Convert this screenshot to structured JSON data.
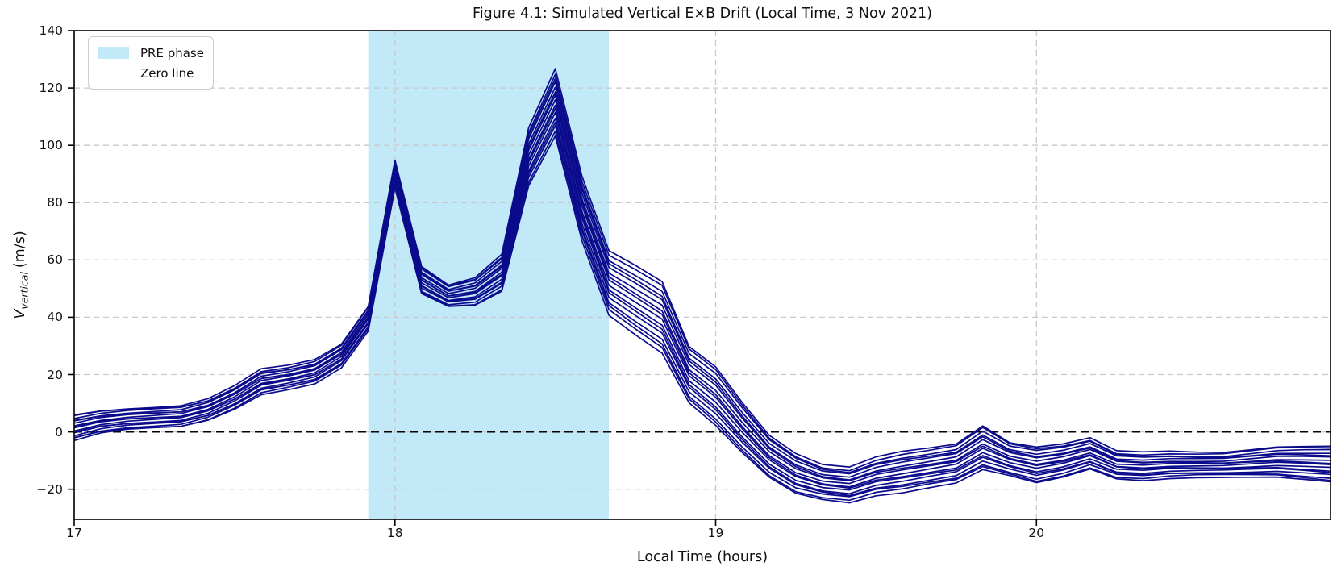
{
  "figure": {
    "title": "Figure 4.1: Simulated Vertical E×B Drift (Local Time, 3 Nov 2021)",
    "xlabel": "Local Time (hours)",
    "ylabel": {
      "variable": "V",
      "subscript": "vertical",
      "unit": "(m/s)"
    }
  },
  "legend": {
    "items": [
      {
        "label": "PRE phase",
        "marker": "patch",
        "color": "#c2e9f8"
      },
      {
        "label": "Zero line",
        "marker": "dashed-line",
        "color": "#000000"
      }
    ]
  },
  "chart_data": {
    "type": "line",
    "title": "Figure 4.1: Simulated Vertical E×B Drift (Local Time, 3 Nov 2021)",
    "xlabel": "Local Time (hours)",
    "ylabel": "V_vertical (m/s)",
    "xlim": [
      17.0,
      20.917
    ],
    "ylim": [
      -30.5,
      140
    ],
    "xticks": [
      17,
      18,
      19,
      20
    ],
    "yticks": [
      -20,
      0,
      20,
      40,
      60,
      80,
      100,
      120,
      140
    ],
    "grid": true,
    "grid_color": "#c9c9c9",
    "legend_position": "upper left",
    "pre_phase_span": {
      "start": 17.917,
      "end": 18.667,
      "color": "#c2e9f8"
    },
    "zero_line_y": 0,
    "ensemble": {
      "n_members": 16,
      "line_color": "#0b0b8c",
      "line_width": 1.7,
      "x_hours": [
        17.0,
        17.083,
        17.167,
        17.25,
        17.333,
        17.417,
        17.5,
        17.583,
        17.667,
        17.75,
        17.833,
        17.917,
        18.0,
        18.083,
        18.167,
        18.25,
        18.333,
        18.417,
        18.5,
        18.583,
        18.667,
        18.75,
        18.833,
        18.917,
        19.0,
        19.083,
        19.167,
        19.25,
        19.333,
        19.417,
        19.5,
        19.583,
        19.667,
        19.75,
        19.833,
        19.917,
        20.0,
        20.083,
        20.167,
        20.25,
        20.333,
        20.417,
        20.5,
        20.583,
        20.667,
        20.75,
        20.833,
        20.917
      ],
      "center": [
        1.5,
        3.5,
        4.5,
        5.0,
        5.5,
        7.8,
        12.0,
        17.5,
        19.0,
        21.0,
        26.5,
        39.5,
        90.0,
        53.0,
        47.5,
        49.0,
        55.5,
        96.0,
        115.0,
        78.0,
        52.0,
        46.0,
        40.0,
        20.0,
        12.5,
        1.5,
        -8.5,
        -14.5,
        -17.5,
        -18.5,
        -15.5,
        -14.0,
        -12.5,
        -11.0,
        -5.5,
        -9.5,
        -11.5,
        -10.0,
        -7.5,
        -11.5,
        -12.0,
        -11.5,
        -11.5,
        -11.5,
        -11.0,
        -10.5,
        -10.8,
        -11.2
      ],
      "half_spread": [
        4.5,
        4.0,
        3.8,
        3.8,
        3.8,
        3.8,
        4.0,
        4.3,
        4.0,
        4.0,
        4.0,
        4.3,
        5.0,
        5.0,
        4.0,
        5.0,
        6.5,
        10.0,
        11.5,
        11.0,
        11.0,
        12.0,
        12.5,
        10.0,
        10.5,
        9.0,
        7.5,
        7.0,
        6.0,
        6.0,
        6.5,
        7.0,
        6.8,
        6.8,
        7.8,
        6.0,
        6.5,
        6.0,
        5.5,
        4.8,
        4.8,
        4.5,
        4.2,
        4.2,
        4.8,
        5.4,
        6.0,
        6.5
      ]
    }
  }
}
